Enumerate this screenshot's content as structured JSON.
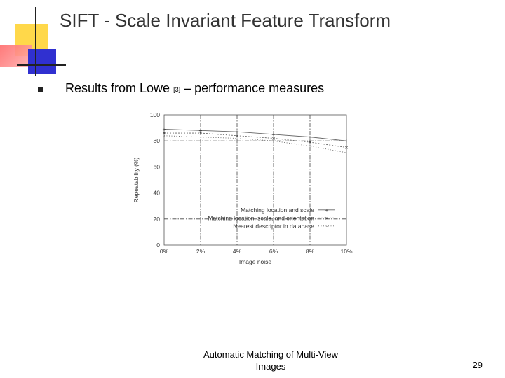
{
  "slide": {
    "title": "SIFT - Scale Invariant Feature Transform",
    "bullet": {
      "text_before": "Results from Lowe",
      "ref": "[3]",
      "text_after": " – performance measures"
    },
    "footer": "Automatic Matching of Multi-View Images",
    "page_number": "29"
  },
  "chart_data": {
    "type": "line",
    "xlabel": "Image noise",
    "ylabel": "Repeatability (%)",
    "x": [
      0,
      2,
      4,
      6,
      8,
      10
    ],
    "x_tick_labels": [
      "0%",
      "2%",
      "4%",
      "6%",
      "8%",
      "10%"
    ],
    "y_ticks": [
      0,
      20,
      40,
      60,
      80,
      100
    ],
    "xlim": [
      0,
      10
    ],
    "ylim": [
      0,
      100
    ],
    "grid": "dashed",
    "legend_position": "lower-right",
    "series": [
      {
        "name": "Matching location and scale",
        "values": [
          89,
          88,
          87,
          85,
          83,
          80
        ]
      },
      {
        "name": "Matching location, scale, and orientation",
        "values": [
          86,
          86,
          84,
          82,
          79,
          75
        ]
      },
      {
        "name": "Nearest descriptor in database",
        "values": [
          84,
          83,
          82,
          80,
          76,
          71
        ]
      }
    ]
  }
}
